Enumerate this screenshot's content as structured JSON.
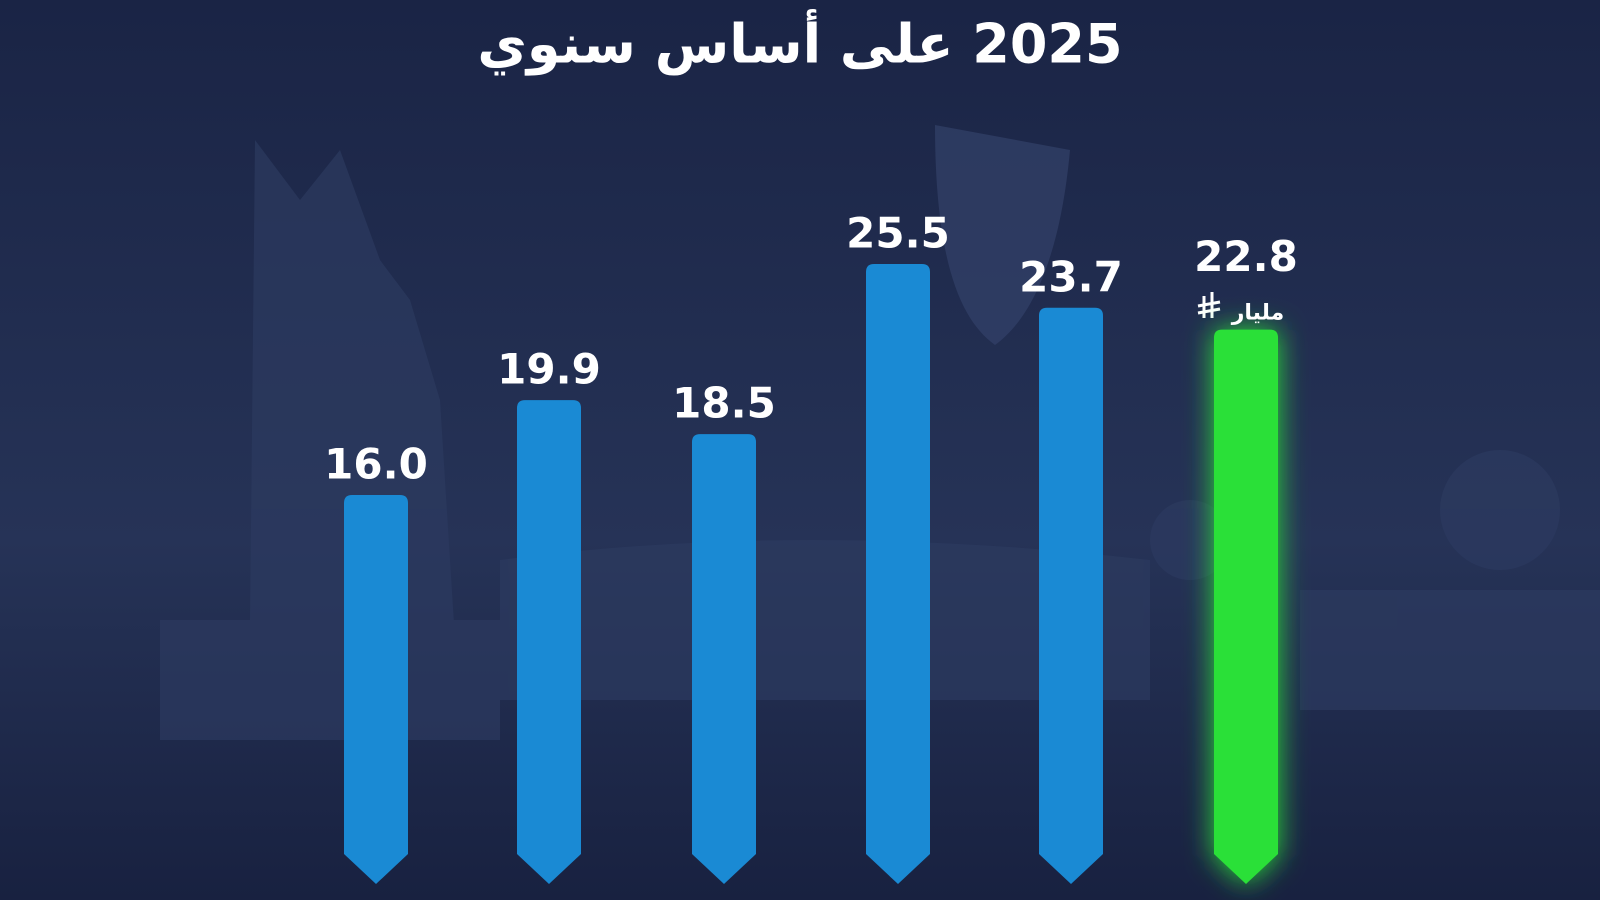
{
  "chart_data": {
    "type": "bar",
    "title": "2025 على أساس سنوي",
    "values": [
      16.0,
      19.9,
      18.5,
      25.5,
      23.7,
      22.8
    ],
    "value_labels": [
      "16.0",
      "19.9",
      "18.5",
      "25.5",
      "23.7",
      "22.8"
    ],
    "unit_label": "مليار",
    "colors": [
      "#1a8ad4",
      "#1a8ad4",
      "#1a8ad4",
      "#1a8ad4",
      "#1a8ad4",
      "#2be038"
    ],
    "ylim": [
      0,
      35
    ]
  }
}
